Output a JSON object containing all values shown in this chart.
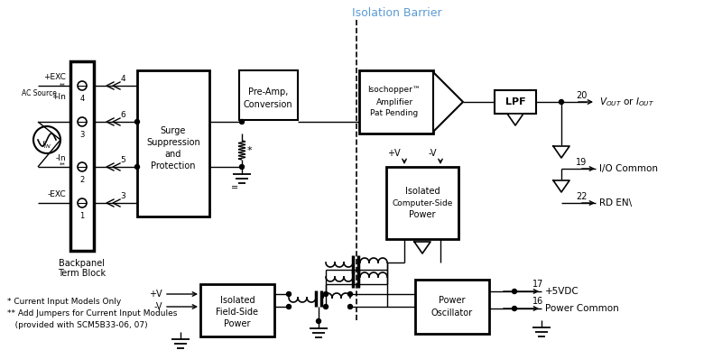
{
  "bg_color": "#ffffff",
  "title": "Isolation Barrier",
  "title_color": "#5B9BD5",
  "footnotes": [
    "* Current Input Models Only",
    "** Add Jumpers for Current Input Modules",
    "   (provided with SCM5B33-06, 07)"
  ]
}
